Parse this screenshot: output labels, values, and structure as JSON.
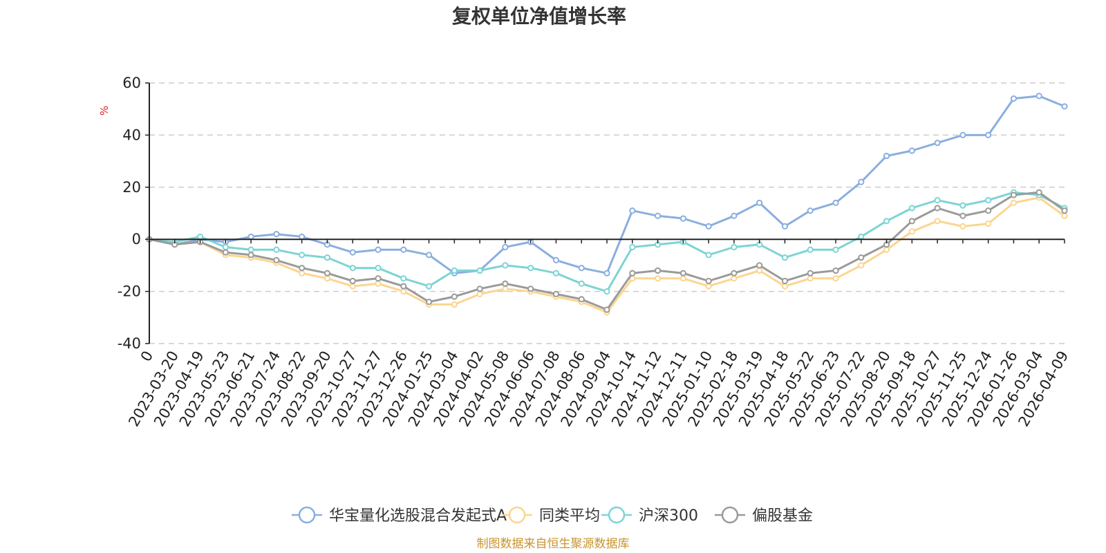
{
  "chart_data": {
    "type": "line",
    "title": "复权单位净值增长率",
    "ylabel": "%",
    "ylim": [
      -40,
      60
    ],
    "yticks": [
      "60",
      "40",
      "20",
      "0",
      "-20",
      "-40"
    ],
    "ytick_values": [
      60,
      40,
      20,
      0,
      -20,
      -40
    ],
    "categories": [
      "0",
      "2023-03-20",
      "2023-04-19",
      "2023-05-23",
      "2023-06-21",
      "2023-07-24",
      "2023-08-22",
      "2023-09-20",
      "2023-10-27",
      "2023-11-27",
      "2023-12-26",
      "2024-01-25",
      "2024-03-04",
      "2024-04-02",
      "2024-05-08",
      "2024-06-06",
      "2024-07-08",
      "2024-08-06",
      "2024-09-04",
      "2024-10-14",
      "2024-11-12",
      "2024-12-11",
      "2025-01-10",
      "2025-02-18",
      "2025-03-19",
      "2025-04-18",
      "2025-05-22",
      "2025-06-23",
      "2025-07-22",
      "2025-08-20",
      "2025-09-18",
      "2025-10-27",
      "2025-11-25",
      "2025-12-24",
      "2026-01-26",
      "2026-03-04",
      "2026-04-09"
    ],
    "grid": true,
    "legend_position": "bottom",
    "source_note": "制图数据来自恒生聚源数据库",
    "series": [
      {
        "name": "华宝量化选股混合发起式A",
        "color": "#8aaee0",
        "values": [
          0,
          -2,
          0,
          -1,
          1,
          2,
          1,
          -2,
          -5,
          -4,
          -4,
          -6,
          -13,
          -12,
          -3,
          -1,
          -8,
          -11,
          -13,
          11,
          9,
          8,
          5,
          9,
          14,
          5,
          11,
          14,
          22,
          32,
          34,
          37,
          40,
          40,
          54,
          55,
          51
        ]
      },
      {
        "name": "同类平均",
        "color": "#fcd58e",
        "values": [
          0,
          -2,
          -1,
          -6,
          -7,
          -9,
          -13,
          -15,
          -18,
          -17,
          -20,
          -25,
          -25,
          -21,
          -19,
          -20,
          -22,
          -24,
          -28,
          -15,
          -15,
          -15,
          -18,
          -15,
          -12,
          -18,
          -15,
          -15,
          -10,
          -4,
          3,
          7,
          5,
          6,
          14,
          16,
          9
        ]
      },
      {
        "name": "沪深300",
        "color": "#7dd4d4",
        "values": [
          0,
          -1,
          1,
          -3,
          -4,
          -4,
          -6,
          -7,
          -11,
          -11,
          -15,
          -18,
          -12,
          -12,
          -10,
          -11,
          -13,
          -17,
          -20,
          -3,
          -2,
          -1,
          -6,
          -3,
          -2,
          -7,
          -4,
          -4,
          1,
          7,
          12,
          15,
          13,
          15,
          18,
          17,
          12
        ]
      },
      {
        "name": "偏股基金",
        "color": "#9a9a9a",
        "values": [
          0,
          -2,
          -1,
          -5,
          -6,
          -8,
          -11,
          -13,
          -16,
          -15,
          -18,
          -24,
          -22,
          -19,
          -17,
          -19,
          -21,
          -23,
          -27,
          -13,
          -12,
          -13,
          -16,
          -13,
          -10,
          -16,
          -13,
          -12,
          -7,
          -2,
          7,
          12,
          9,
          11,
          17,
          18,
          11
        ]
      }
    ]
  }
}
